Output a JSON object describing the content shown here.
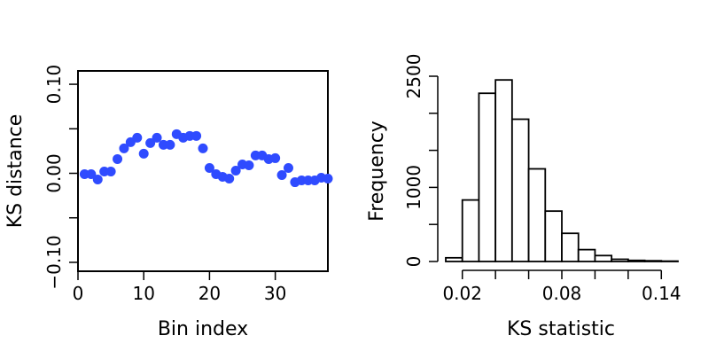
{
  "chart_data": [
    {
      "type": "scatter",
      "title": "",
      "xlabel": "Bin index",
      "ylabel": "KS distance",
      "xlim": [
        0,
        38
      ],
      "ylim": [
        -0.11,
        0.115
      ],
      "x_ticks": [
        {
          "value": 0,
          "label": "0"
        },
        {
          "value": 10,
          "label": "10"
        },
        {
          "value": 20,
          "label": "20"
        },
        {
          "value": 30,
          "label": "30"
        }
      ],
      "y_ticks": [
        {
          "value": -0.1,
          "label": "−0.10"
        },
        {
          "value": -0.05,
          "label": ""
        },
        {
          "value": 0.0,
          "label": "0.00"
        },
        {
          "value": 0.05,
          "label": ""
        },
        {
          "value": 0.1,
          "label": "0.10"
        }
      ],
      "point_color": "#2f4bff",
      "grid": false,
      "x": [
        1,
        2,
        3,
        4,
        5,
        6,
        7,
        8,
        9,
        10,
        11,
        12,
        13,
        14,
        15,
        16,
        17,
        18,
        19,
        20,
        21,
        22,
        23,
        24,
        25,
        26,
        27,
        28,
        29,
        30,
        31,
        32,
        33,
        34,
        35,
        36,
        37,
        38
      ],
      "y": [
        -0.001,
        -0.001,
        -0.007,
        0.002,
        0.002,
        0.016,
        0.028,
        0.035,
        0.04,
        0.022,
        0.034,
        0.04,
        0.032,
        0.032,
        0.044,
        0.04,
        0.042,
        0.042,
        0.028,
        0.006,
        -0.001,
        -0.004,
        -0.006,
        0.003,
        0.01,
        0.009,
        0.02,
        0.02,
        0.016,
        0.017,
        -0.002,
        0.006,
        -0.01,
        -0.008,
        -0.008,
        -0.008,
        -0.005,
        -0.006
      ]
    },
    {
      "type": "bar",
      "subtype": "histogram",
      "title": "",
      "xlabel": "KS statistic",
      "ylabel": "Frequency",
      "bin_width": 0.01,
      "bin_starts": [
        0.01,
        0.02,
        0.03,
        0.04,
        0.05,
        0.06,
        0.07,
        0.08,
        0.09,
        0.1,
        0.11,
        0.12,
        0.13,
        0.14
      ],
      "values": [
        50,
        830,
        2270,
        2450,
        1920,
        1250,
        680,
        380,
        160,
        80,
        30,
        15,
        10,
        5
      ],
      "xlim": [
        0.01,
        0.15
      ],
      "ylim": [
        0,
        2500
      ],
      "x_ticks": [
        {
          "value": 0.02,
          "label": "0.02"
        },
        {
          "value": 0.04,
          "label": ""
        },
        {
          "value": 0.06,
          "label": ""
        },
        {
          "value": 0.08,
          "label": "0.08"
        },
        {
          "value": 0.1,
          "label": ""
        },
        {
          "value": 0.12,
          "label": ""
        },
        {
          "value": 0.14,
          "label": "0.14"
        }
      ],
      "y_ticks": [
        {
          "value": 0,
          "label": "0"
        },
        {
          "value": 500,
          "label": ""
        },
        {
          "value": 1000,
          "label": "1000"
        },
        {
          "value": 1500,
          "label": ""
        },
        {
          "value": 2000,
          "label": ""
        },
        {
          "value": 2500,
          "label": "2500"
        }
      ],
      "grid": false
    }
  ]
}
